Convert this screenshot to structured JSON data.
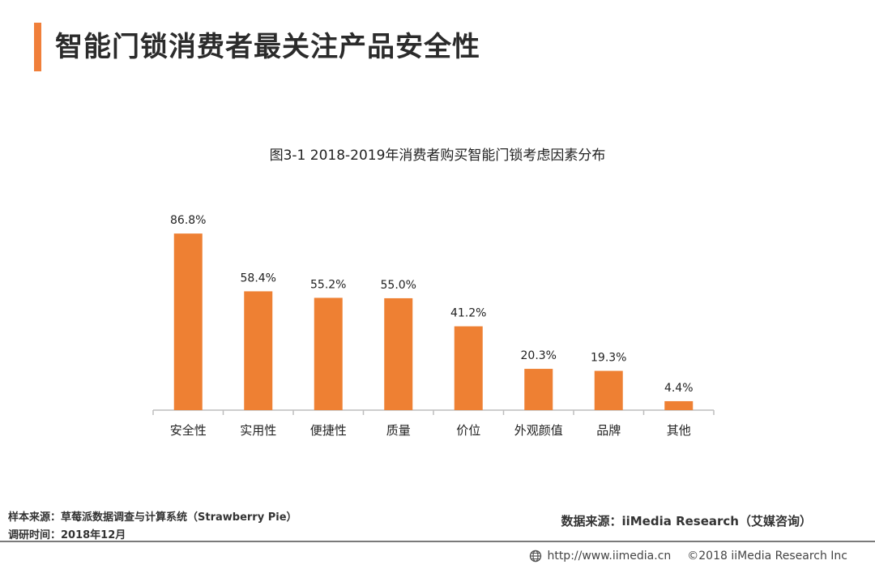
{
  "page": {
    "title": "智能门锁消费者最关注产品安全性",
    "accent_color": "#f07f3a"
  },
  "footer": {
    "sample_source": "样本来源：草莓派数据调查与计算系统（Strawberry Pie）",
    "survey_time": "调研时间：2018年12月",
    "data_source": "数据来源：iiMedia Research（艾媒咨询）",
    "url": "http://www.iimedia.cn",
    "copyright": "©2018  iiMedia Research Inc",
    "globe_icon": "globe-icon"
  },
  "chart_data": {
    "type": "bar",
    "title": "图3-1 2018-2019年消费者购买智能门锁考虑因素分布",
    "categories": [
      "安全性",
      "实用性",
      "便捷性",
      "质量",
      "价位",
      "外观颜值",
      "品牌",
      "其他"
    ],
    "values": [
      86.8,
      58.4,
      55.2,
      55.0,
      41.2,
      20.3,
      19.3,
      4.4
    ],
    "value_labels": [
      "86.8%",
      "58.4%",
      "55.2%",
      "55.0%",
      "41.2%",
      "20.3%",
      "19.3%",
      "4.4%"
    ],
    "xlabel": "",
    "ylabel": "",
    "unit": "%",
    "ylim": [
      0,
      100
    ],
    "bar_color": "#ee8033",
    "axis_color": "#bdbdbd",
    "grid": false,
    "legend": "none"
  }
}
